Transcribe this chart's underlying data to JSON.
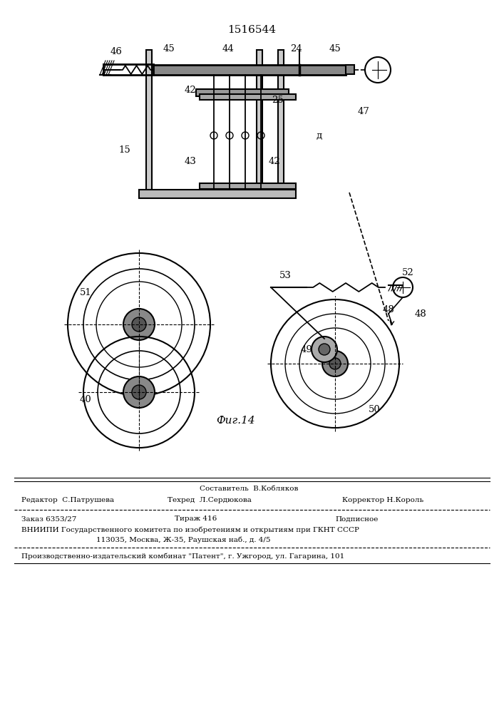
{
  "title": "1516544",
  "fig_label": "Фиг.14",
  "bg_color": "#ffffff",
  "line_color": "#000000",
  "figsize": [
    7.07,
    10.0
  ],
  "dpi": 100,
  "footer_lines": [
    "Составитель  В.Кобляков",
    "Редактор  С.Патрушева     Техред  Л.Сердюкова          Корректор Н.Король",
    "Заказ 6353/27          Тираж 416                    Подписное",
    "ВНИИПИ Государственного комитета по изобретениям и открытиям при ГКНТ СССР",
    "113035, Москва, Ж-35, Раушская наб., д. 4/5",
    "Производственно-издательский комбинат \"Патент\", г. Ужгород, ул. Гагарина, 101"
  ]
}
